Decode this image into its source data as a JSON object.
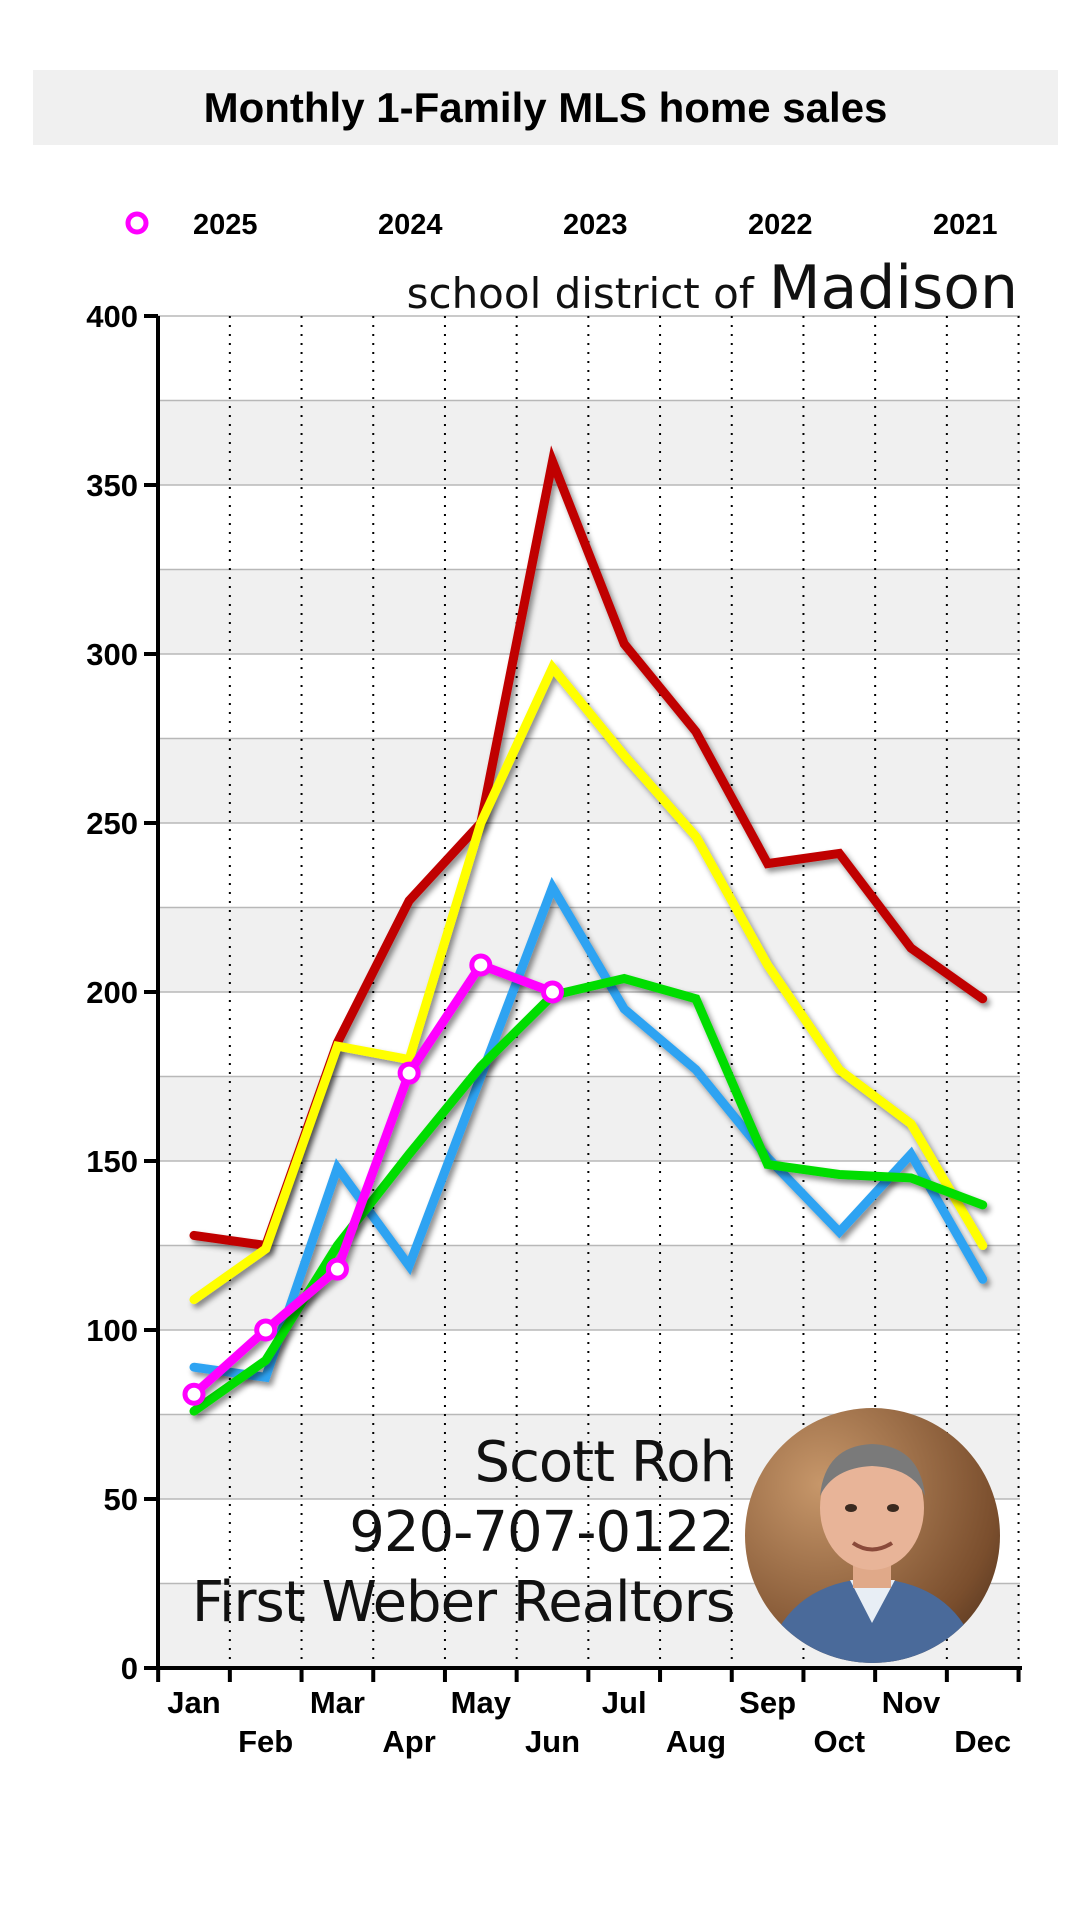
{
  "chart_data": {
    "type": "line",
    "title": "Monthly 1-Family MLS home sales",
    "subtitle_prefix": "school district of",
    "subtitle_place": "Madison",
    "categories": [
      "Jan",
      "Feb",
      "Mar",
      "Apr",
      "May",
      "Jun",
      "Jul",
      "Aug",
      "Sep",
      "Oct",
      "Nov",
      "Dec"
    ],
    "ylim": [
      0,
      400
    ],
    "yticks": [
      "0",
      "50",
      "100",
      "150",
      "200",
      "250",
      "300",
      "350",
      "400"
    ],
    "legend_position": "top",
    "grid": true,
    "series": [
      {
        "name": "2021",
        "color": "#c00000",
        "values": [
          128,
          125,
          185,
          227,
          250,
          357,
          303,
          277,
          238,
          241,
          213,
          198
        ]
      },
      {
        "name": "2022",
        "color": "#ffff00",
        "values": [
          109,
          124,
          184,
          180,
          250,
          296,
          270,
          246,
          208,
          177,
          161,
          125
        ]
      },
      {
        "name": "2023",
        "color": "#2ea3f2",
        "values": [
          89,
          86,
          148,
          119,
          175,
          231,
          195,
          177,
          151,
          129,
          152,
          115
        ]
      },
      {
        "name": "2024",
        "color": "#00dd00",
        "values": [
          76,
          91,
          125,
          152,
          178,
          199,
          204,
          198,
          149,
          146,
          145,
          137
        ]
      },
      {
        "name": "2025",
        "color": "#ff00ff",
        "markers": true,
        "values": [
          81,
          100,
          118,
          176,
          208,
          200,
          null,
          null,
          null,
          null,
          null,
          null
        ]
      }
    ]
  },
  "contact": {
    "name": "Scott Roh",
    "phone": "920-707-0122",
    "company": "First Weber Realtors"
  }
}
